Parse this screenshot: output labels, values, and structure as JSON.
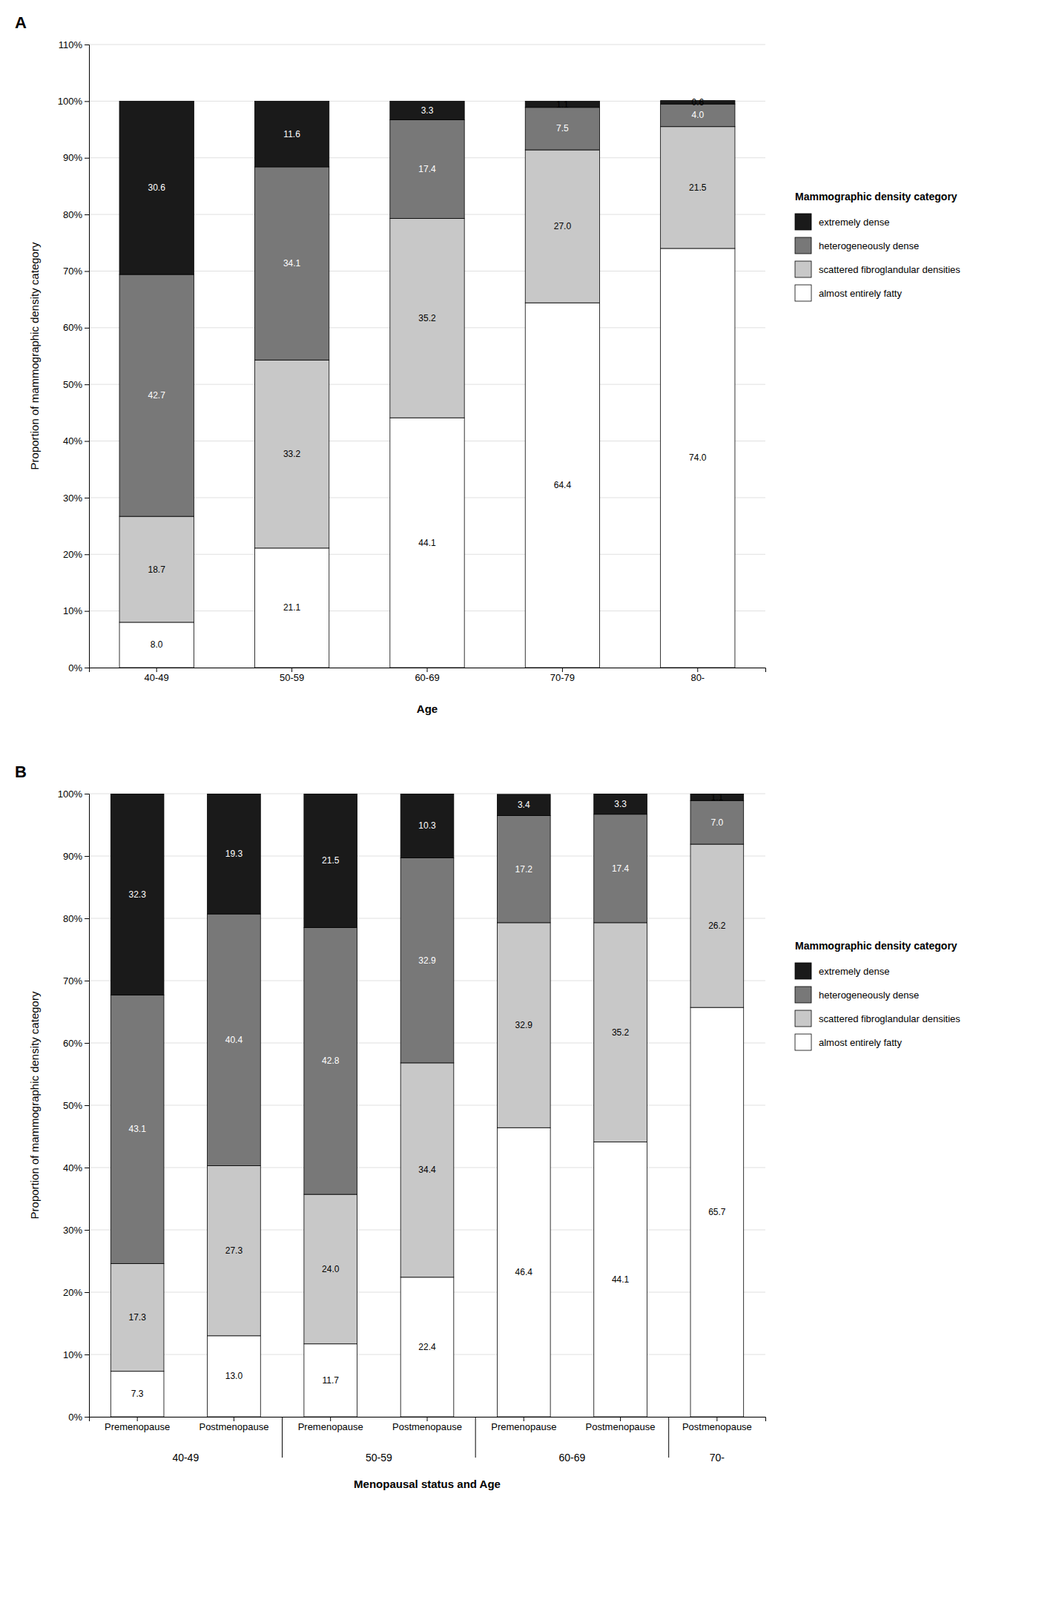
{
  "chart_data": [
    {
      "type": "bar",
      "stacked": true,
      "data_labels": true,
      "grid": true,
      "legend": "right",
      "title": "A",
      "xlabel": "Age",
      "ylabel": "Proportion of mammographic density category",
      "legend_title": "Mammographic density category",
      "categories": [
        "40-49",
        "50-59",
        "60-69",
        "70-79",
        "80-"
      ],
      "ylim": [
        0,
        110
      ],
      "yticks": [
        {
          "value": 0,
          "label": "0%"
        },
        {
          "value": 10,
          "label": "10%"
        },
        {
          "value": 20,
          "label": "20%"
        },
        {
          "value": 30,
          "label": "30%"
        },
        {
          "value": 40,
          "label": "40%"
        },
        {
          "value": 50,
          "label": "50%"
        },
        {
          "value": 60,
          "label": "60%"
        },
        {
          "value": 70,
          "label": "70%"
        },
        {
          "value": 80,
          "label": "80%"
        },
        {
          "value": 90,
          "label": "90%"
        },
        {
          "value": 100,
          "label": "100%"
        },
        {
          "value": 110,
          "label": "110%"
        }
      ],
      "series": [
        {
          "name": "almost entirely fatty",
          "color": "#FFFFFF",
          "values": [
            8.0,
            21.1,
            44.1,
            64.4,
            74.0
          ],
          "value_labels": [
            "8.0",
            "21.1",
            "44.1",
            "64.4",
            "74.0"
          ]
        },
        {
          "name": "scattered fibroglandular densities",
          "color": "#C8C8C8",
          "values": [
            18.7,
            33.2,
            35.2,
            27.0,
            21.5
          ],
          "value_labels": [
            "18.7",
            "33.2",
            "35.2",
            "27.0",
            "21.5"
          ]
        },
        {
          "name": "heterogeneously dense",
          "color": "#787878",
          "values": [
            42.7,
            34.1,
            17.4,
            7.5,
            4.0
          ],
          "value_labels": [
            "42.7",
            "34.1",
            "17.4",
            "7.5",
            "4.0"
          ]
        },
        {
          "name": "extremely dense",
          "color": "#1a1a1a",
          "values": [
            30.6,
            11.6,
            3.3,
            1.1,
            0.6
          ],
          "value_labels": [
            "30.6",
            "11.6",
            "3.3",
            "1.1",
            "0.6"
          ]
        }
      ]
    },
    {
      "type": "bar",
      "stacked": true,
      "data_labels": true,
      "grid": true,
      "legend": "right",
      "title": "B",
      "xlabel": "Menopausal status and Age",
      "ylabel": "Proportion of mammographic density category",
      "legend_title": "Mammographic density category",
      "categories": [
        "Premenopause",
        "Postmenopause",
        "Premenopause",
        "Postmenopause",
        "Premenopause",
        "Postmenopause",
        "Postmenopause"
      ],
      "x_groups": [
        "40-49",
        "40-49",
        "50-59",
        "50-59",
        "60-69",
        "60-69",
        "70-"
      ],
      "ylim": [
        0,
        100
      ],
      "yticks": [
        {
          "value": 0,
          "label": "0%"
        },
        {
          "value": 10,
          "label": "10%"
        },
        {
          "value": 20,
          "label": "20%"
        },
        {
          "value": 30,
          "label": "30%"
        },
        {
          "value": 40,
          "label": "40%"
        },
        {
          "value": 50,
          "label": "50%"
        },
        {
          "value": 60,
          "label": "60%"
        },
        {
          "value": 70,
          "label": "70%"
        },
        {
          "value": 80,
          "label": "80%"
        },
        {
          "value": 90,
          "label": "90%"
        },
        {
          "value": 100,
          "label": "100%"
        }
      ],
      "series": [
        {
          "name": "almost entirely fatty",
          "color": "#FFFFFF",
          "values": [
            7.3,
            13.0,
            11.7,
            22.4,
            46.4,
            44.1,
            65.7
          ],
          "value_labels": [
            "7.3",
            "13.0",
            "11.7",
            "22.4",
            "46.4",
            "44.1",
            "65.7"
          ]
        },
        {
          "name": "scattered fibroglandular densities",
          "color": "#C8C8C8",
          "values": [
            17.3,
            27.3,
            24.0,
            34.4,
            32.9,
            35.2,
            26.2
          ],
          "value_labels": [
            "17.3",
            "27.3",
            "24.0",
            "34.4",
            "32.9",
            "35.2",
            "26.2"
          ]
        },
        {
          "name": "heterogeneously dense",
          "color": "#787878",
          "values": [
            43.1,
            40.4,
            42.8,
            32.9,
            17.2,
            17.4,
            7.0
          ],
          "value_labels": [
            "43.1",
            "40.4",
            "42.8",
            "32.9",
            "17.2",
            "17.4",
            "7.0"
          ]
        },
        {
          "name": "extremely dense",
          "color": "#1a1a1a",
          "values": [
            32.3,
            19.3,
            21.5,
            10.3,
            3.4,
            3.3,
            1.1
          ],
          "value_labels": [
            "32.3",
            "19.3",
            "21.5",
            "10.3",
            "3.4",
            "3.3",
            "1.1"
          ]
        }
      ]
    }
  ]
}
